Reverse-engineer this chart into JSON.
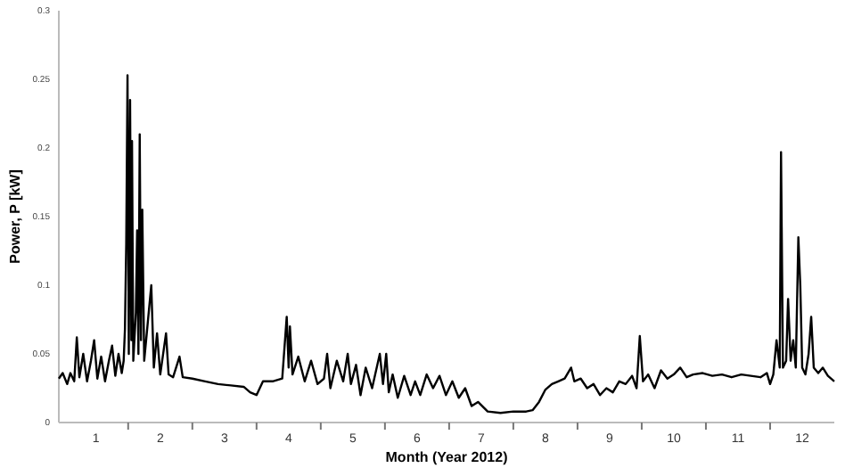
{
  "chart_data": {
    "type": "line",
    "xlabel": "Month (Year 2012)",
    "ylabel": "Power, P [kW]",
    "xlim": [
      0.42,
      12.5
    ],
    "xticks": [
      {
        "value": 1,
        "label": "1"
      },
      {
        "value": 1.5,
        "label": null
      },
      {
        "value": 2,
        "label": "2"
      },
      {
        "value": 2.5,
        "label": null
      },
      {
        "value": 3,
        "label": "3"
      },
      {
        "value": 3.5,
        "label": null
      },
      {
        "value": 4,
        "label": "4"
      },
      {
        "value": 4.5,
        "label": null
      },
      {
        "value": 5,
        "label": "5"
      },
      {
        "value": 5.5,
        "label": null
      },
      {
        "value": 6,
        "label": "6"
      },
      {
        "value": 6.5,
        "label": null
      },
      {
        "value": 7,
        "label": "7"
      },
      {
        "value": 7.5,
        "label": null
      },
      {
        "value": 8,
        "label": "8"
      },
      {
        "value": 8.5,
        "label": null
      },
      {
        "value": 9,
        "label": "9"
      },
      {
        "value": 9.5,
        "label": null
      },
      {
        "value": 10,
        "label": "10"
      },
      {
        "value": 10.5,
        "label": null
      },
      {
        "value": 11,
        "label": "11"
      },
      {
        "value": 11.5,
        "label": null
      },
      {
        "value": 12,
        "label": "12"
      }
    ],
    "ylim": [
      0,
      0.3
    ],
    "yticks": [
      0,
      0.05,
      0.1,
      0.15,
      0.2,
      0.25,
      0.3
    ],
    "grid": false,
    "marker": "none",
    "line_style": "solid",
    "series": [
      {
        "color": "#000000",
        "x": [
          0.42,
          0.48,
          0.55,
          0.6,
          0.66,
          0.7,
          0.74,
          0.8,
          0.86,
          0.92,
          0.97,
          1.02,
          1.08,
          1.14,
          1.2,
          1.25,
          1.3,
          1.35,
          1.4,
          1.43,
          1.45,
          1.47,
          1.49,
          1.51,
          1.53,
          1.55,
          1.56,
          1.58,
          1.62,
          1.64,
          1.66,
          1.68,
          1.7,
          1.72,
          1.75,
          1.8,
          1.86,
          1.9,
          1.95,
          2.0,
          2.09,
          2.13,
          2.2,
          2.3,
          2.35,
          2.5,
          2.7,
          2.9,
          3.1,
          3.3,
          3.4,
          3.5,
          3.6,
          3.75,
          3.9,
          3.97,
          4.0,
          4.02,
          4.06,
          4.15,
          4.25,
          4.35,
          4.45,
          4.55,
          4.6,
          4.65,
          4.75,
          4.85,
          4.92,
          4.97,
          5.05,
          5.12,
          5.2,
          5.3,
          5.42,
          5.47,
          5.52,
          5.56,
          5.62,
          5.7,
          5.8,
          5.9,
          5.97,
          6.05,
          6.15,
          6.25,
          6.35,
          6.45,
          6.55,
          6.65,
          6.75,
          6.85,
          6.95,
          7.1,
          7.3,
          7.5,
          7.7,
          7.8,
          7.9,
          8.0,
          8.1,
          8.2,
          8.3,
          8.4,
          8.45,
          8.55,
          8.65,
          8.75,
          8.85,
          8.95,
          9.05,
          9.15,
          9.25,
          9.35,
          9.42,
          9.47,
          9.52,
          9.6,
          9.7,
          9.8,
          9.9,
          10.0,
          10.1,
          10.2,
          10.3,
          10.45,
          10.6,
          10.75,
          10.9,
          11.05,
          11.2,
          11.35,
          11.45,
          11.5,
          11.55,
          11.6,
          11.65,
          11.67,
          11.7,
          11.75,
          11.78,
          11.82,
          11.86,
          11.9,
          11.94,
          11.97,
          12.0,
          12.05,
          12.1,
          12.14,
          12.18,
          12.25,
          12.32,
          12.4,
          12.5
        ],
        "values": [
          0.032,
          0.036,
          0.028,
          0.036,
          0.03,
          0.062,
          0.033,
          0.05,
          0.03,
          0.045,
          0.06,
          0.032,
          0.048,
          0.03,
          0.045,
          0.056,
          0.034,
          0.05,
          0.036,
          0.045,
          0.068,
          0.13,
          0.253,
          0.05,
          0.235,
          0.06,
          0.205,
          0.045,
          0.08,
          0.14,
          0.05,
          0.21,
          0.06,
          0.155,
          0.045,
          0.07,
          0.1,
          0.04,
          0.065,
          0.035,
          0.065,
          0.035,
          0.033,
          0.048,
          0.033,
          0.032,
          0.03,
          0.028,
          0.027,
          0.026,
          0.022,
          0.02,
          0.03,
          0.03,
          0.032,
          0.077,
          0.04,
          0.07,
          0.035,
          0.048,
          0.03,
          0.045,
          0.028,
          0.032,
          0.05,
          0.025,
          0.045,
          0.03,
          0.05,
          0.028,
          0.042,
          0.02,
          0.04,
          0.025,
          0.05,
          0.028,
          0.05,
          0.022,
          0.035,
          0.018,
          0.034,
          0.02,
          0.03,
          0.02,
          0.035,
          0.025,
          0.034,
          0.02,
          0.03,
          0.018,
          0.025,
          0.012,
          0.015,
          0.008,
          0.007,
          0.008,
          0.008,
          0.009,
          0.015,
          0.024,
          0.028,
          0.03,
          0.032,
          0.04,
          0.03,
          0.032,
          0.025,
          0.028,
          0.02,
          0.025,
          0.022,
          0.03,
          0.028,
          0.034,
          0.025,
          0.063,
          0.03,
          0.035,
          0.025,
          0.038,
          0.032,
          0.035,
          0.04,
          0.033,
          0.035,
          0.036,
          0.034,
          0.035,
          0.033,
          0.035,
          0.034,
          0.033,
          0.036,
          0.028,
          0.035,
          0.06,
          0.04,
          0.197,
          0.04,
          0.045,
          0.09,
          0.045,
          0.06,
          0.04,
          0.135,
          0.1,
          0.04,
          0.035,
          0.05,
          0.077,
          0.04,
          0.036,
          0.04,
          0.034,
          0.03
        ]
      }
    ]
  }
}
